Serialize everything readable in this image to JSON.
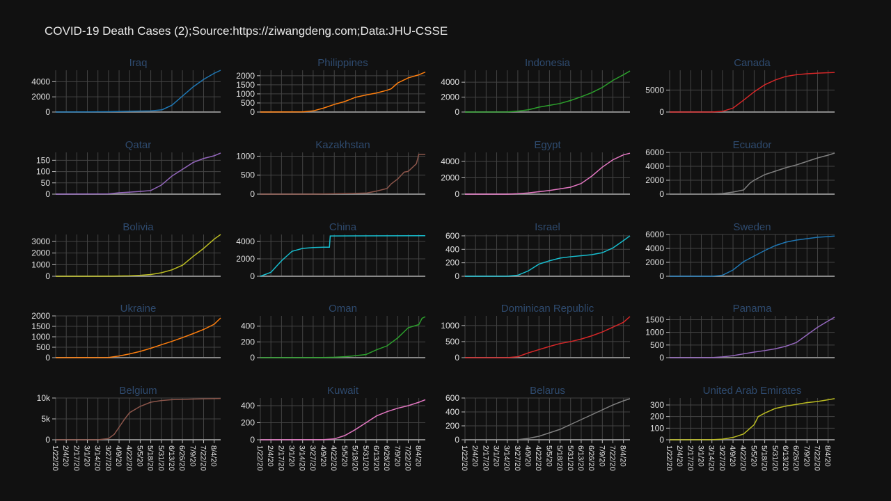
{
  "title": "COVID-19 Death Cases (2);Source:https://ziwangdeng.com;Data:JHU-CSSE",
  "colors": [
    "#1f77b4",
    "#ff7f0e",
    "#2ca02c",
    "#d62728",
    "#9467bd",
    "#8c564b",
    "#e377c2",
    "#7f7f7f",
    "#bcbd22",
    "#17becf"
  ],
  "x_tick_labels": [
    "1/22/20",
    "2/4/20",
    "2/17/20",
    "3/1/20",
    "3/14/20",
    "3/27/20",
    "4/9/20",
    "4/22/20",
    "5/5/20",
    "5/18/20",
    "5/31/20",
    "6/13/20",
    "6/26/20",
    "7/9/20",
    "7/22/20",
    "8/4/20"
  ],
  "chart_data": [
    {
      "type": "line",
      "title": "Iraq",
      "color": "#1f77b4",
      "ylim": [
        0,
        5500
      ],
      "yticks": [
        0,
        2000,
        4000
      ],
      "ytick_labels": [
        "0",
        "2000",
        "4000"
      ],
      "x": [
        "1/22/20",
        "3/27/20",
        "4/22/20",
        "5/18/20",
        "6/1/20",
        "6/13/20",
        "6/26/20",
        "7/9/20",
        "7/22/20",
        "8/4/20",
        "8/12/20"
      ],
      "values": [
        0,
        40,
        100,
        150,
        300,
        900,
        2100,
        3300,
        4300,
        5100,
        5500
      ]
    },
    {
      "type": "line",
      "title": "Philippines",
      "color": "#ff7f0e",
      "ylim": [
        0,
        2300
      ],
      "yticks": [
        0,
        500,
        1000,
        1500,
        2000
      ],
      "ytick_labels": [
        "0",
        "500",
        "1000",
        "1500",
        "2000"
      ],
      "x": [
        "1/22/20",
        "3/14/20",
        "3/27/20",
        "4/9/20",
        "4/22/20",
        "5/5/20",
        "5/18/20",
        "5/31/20",
        "6/13/20",
        "6/26/20",
        "7/1/20",
        "7/9/20",
        "7/22/20",
        "8/4/20",
        "8/12/20"
      ],
      "values": [
        0,
        10,
        60,
        220,
        420,
        580,
        810,
        940,
        1050,
        1200,
        1280,
        1600,
        1880,
        2050,
        2200
      ]
    },
    {
      "type": "line",
      "title": "Indonesia",
      "color": "#2ca02c",
      "ylim": [
        0,
        5600
      ],
      "yticks": [
        0,
        2000,
        4000
      ],
      "ytick_labels": [
        "0",
        "2000",
        "4000"
      ],
      "x": [
        "1/22/20",
        "3/14/20",
        "3/27/20",
        "4/9/20",
        "4/22/20",
        "5/5/20",
        "5/18/20",
        "5/31/20",
        "6/13/20",
        "6/26/20",
        "7/9/20",
        "7/22/20",
        "8/4/20",
        "8/12/20"
      ],
      "values": [
        0,
        10,
        120,
        300,
        650,
        900,
        1150,
        1550,
        2050,
        2600,
        3300,
        4250,
        5000,
        5500
      ]
    },
    {
      "type": "line",
      "title": "Canada",
      "color": "#d62728",
      "ylim": [
        0,
        9500
      ],
      "yticks": [
        0,
        5000
      ],
      "ytick_labels": [
        "0",
        "5000"
      ],
      "x": [
        "1/22/20",
        "3/14/20",
        "3/27/20",
        "4/9/20",
        "4/22/20",
        "5/5/20",
        "5/18/20",
        "5/31/20",
        "6/13/20",
        "6/26/20",
        "7/9/20",
        "7/22/20",
        "8/4/20",
        "8/12/20"
      ],
      "values": [
        0,
        5,
        150,
        900,
        2700,
        4600,
        6200,
        7300,
        8100,
        8500,
        8700,
        8850,
        8950,
        9000
      ]
    },
    {
      "type": "line",
      "title": "Qatar",
      "color": "#9467bd",
      "ylim": [
        0,
        185
      ],
      "yticks": [
        0,
        50,
        100,
        150
      ],
      "ytick_labels": [
        "0",
        "50",
        "100",
        "150"
      ],
      "x": [
        "1/22/20",
        "3/27/20",
        "4/9/20",
        "4/22/20",
        "5/5/20",
        "5/18/20",
        "5/31/20",
        "6/13/20",
        "6/26/20",
        "7/9/20",
        "7/22/20",
        "8/4/20",
        "8/12/20"
      ],
      "values": [
        0,
        1,
        6,
        9,
        12,
        16,
        40,
        80,
        110,
        140,
        158,
        170,
        182
      ]
    },
    {
      "type": "line",
      "title": "Kazakhstan",
      "color": "#8c564b",
      "ylim": [
        0,
        1100
      ],
      "yticks": [
        0,
        500,
        1000
      ],
      "ytick_labels": [
        "0",
        "500",
        "1000"
      ],
      "x": [
        "1/22/20",
        "3/27/20",
        "4/22/20",
        "5/18/20",
        "6/1/20",
        "6/13/20",
        "6/26/20",
        "7/1/20",
        "7/9/20",
        "7/17/20",
        "7/22/20",
        "8/1/20",
        "8/4/20",
        "8/12/20"
      ],
      "values": [
        0,
        1,
        10,
        20,
        30,
        80,
        150,
        270,
        400,
        580,
        600,
        800,
        1050,
        1050
      ]
    },
    {
      "type": "line",
      "title": "Egypt",
      "color": "#e377c2",
      "ylim": [
        0,
        5100
      ],
      "yticks": [
        0,
        2000,
        4000
      ],
      "ytick_labels": [
        "0",
        "2000",
        "4000"
      ],
      "x": [
        "1/22/20",
        "3/14/20",
        "3/27/20",
        "4/9/20",
        "4/22/20",
        "5/5/20",
        "5/18/20",
        "5/31/20",
        "6/13/20",
        "6/26/20",
        "7/9/20",
        "7/22/20",
        "8/4/20",
        "8/12/20"
      ],
      "values": [
        0,
        2,
        50,
        150,
        300,
        450,
        650,
        850,
        1300,
        2200,
        3300,
        4200,
        4800,
        5000
      ]
    },
    {
      "type": "line",
      "title": "Ecuador",
      "color": "#7f7f7f",
      "ylim": [
        0,
        6000
      ],
      "yticks": [
        0,
        2000,
        4000,
        6000
      ],
      "ytick_labels": [
        "0",
        "2000",
        "4000",
        "6000"
      ],
      "x": [
        "1/22/20",
        "3/14/20",
        "3/27/20",
        "4/9/20",
        "4/22/20",
        "4/30/20",
        "5/5/20",
        "5/18/20",
        "5/31/20",
        "6/13/20",
        "6/26/20",
        "7/9/20",
        "7/22/20",
        "8/4/20",
        "8/12/20"
      ],
      "values": [
        0,
        10,
        90,
        300,
        600,
        1600,
        2000,
        2800,
        3300,
        3800,
        4200,
        4700,
        5200,
        5600,
        5900
      ]
    },
    {
      "type": "line",
      "title": "Bolivia",
      "color": "#bcbd22",
      "ylim": [
        0,
        3600
      ],
      "yticks": [
        0,
        1000,
        2000,
        3000
      ],
      "ytick_labels": [
        "0",
        "1000",
        "2000",
        "3000"
      ],
      "x": [
        "1/22/20",
        "3/27/20",
        "4/22/20",
        "5/5/20",
        "5/18/20",
        "5/31/20",
        "6/13/20",
        "6/26/20",
        "7/9/20",
        "7/22/20",
        "8/4/20",
        "8/12/20"
      ],
      "values": [
        0,
        5,
        40,
        80,
        150,
        300,
        550,
        950,
        1700,
        2400,
        3200,
        3600
      ]
    },
    {
      "type": "line",
      "title": "China",
      "color": "#17becf",
      "ylim": [
        0,
        4800
      ],
      "yticks": [
        0,
        2000,
        4000
      ],
      "ytick_labels": [
        "0",
        "2000",
        "4000"
      ],
      "x": [
        "1/22/20",
        "2/4/20",
        "2/17/20",
        "3/1/20",
        "3/14/20",
        "3/27/20",
        "4/9/20",
        "4/16/20",
        "4/17/20",
        "8/12/20"
      ],
      "values": [
        0,
        450,
        1770,
        2870,
        3200,
        3300,
        3340,
        3340,
        4630,
        4660
      ]
    },
    {
      "type": "line",
      "title": "Israel",
      "color": "#17becf",
      "ylim": [
        0,
        620
      ],
      "yticks": [
        0,
        200,
        400,
        600
      ],
      "ytick_labels": [
        "0",
        "200",
        "400",
        "600"
      ],
      "x": [
        "1/22/20",
        "3/14/20",
        "3/27/20",
        "4/9/20",
        "4/22/20",
        "5/5/20",
        "5/18/20",
        "5/31/20",
        "6/13/20",
        "6/26/20",
        "7/9/20",
        "7/22/20",
        "8/4/20",
        "8/12/20"
      ],
      "values": [
        0,
        1,
        15,
        80,
        180,
        230,
        270,
        290,
        305,
        320,
        350,
        420,
        530,
        600
      ]
    },
    {
      "type": "line",
      "title": "Sweden",
      "color": "#1f77b4",
      "ylim": [
        0,
        6000
      ],
      "yticks": [
        0,
        2000,
        4000,
        6000
      ],
      "ytick_labels": [
        "0",
        "2000",
        "4000",
        "6000"
      ],
      "x": [
        "1/22/20",
        "3/14/20",
        "3/27/20",
        "4/9/20",
        "4/22/20",
        "5/5/20",
        "5/18/20",
        "5/31/20",
        "6/13/20",
        "6/26/20",
        "7/9/20",
        "7/22/20",
        "8/4/20",
        "8/12/20"
      ],
      "values": [
        0,
        5,
        150,
        900,
        2100,
        2900,
        3700,
        4400,
        4900,
        5200,
        5400,
        5600,
        5700,
        5770
      ]
    },
    {
      "type": "line",
      "title": "Ukraine",
      "color": "#ff7f0e",
      "ylim": [
        0,
        2000
      ],
      "yticks": [
        0,
        500,
        1000,
        1500,
        2000
      ],
      "ytick_labels": [
        "0",
        "500",
        "1000",
        "1500",
        "2000"
      ],
      "x": [
        "1/22/20",
        "3/27/20",
        "4/9/20",
        "4/22/20",
        "5/5/20",
        "5/18/20",
        "5/31/20",
        "6/13/20",
        "6/26/20",
        "7/9/20",
        "7/22/20",
        "8/4/20",
        "8/12/20"
      ],
      "values": [
        0,
        10,
        80,
        180,
        300,
        450,
        620,
        780,
        960,
        1150,
        1350,
        1600,
        1900
      ]
    },
    {
      "type": "line",
      "title": "Oman",
      "color": "#2ca02c",
      "ylim": [
        0,
        530
      ],
      "yticks": [
        0,
        200,
        400
      ],
      "ytick_labels": [
        "0",
        "200",
        "400"
      ],
      "x": [
        "1/22/20",
        "4/9/20",
        "4/22/20",
        "5/5/20",
        "5/18/20",
        "5/31/20",
        "6/13/20",
        "6/26/20",
        "7/9/20",
        "7/22/20",
        "8/4/20",
        "8/8/20",
        "8/12/20"
      ],
      "values": [
        0,
        2,
        5,
        12,
        25,
        40,
        100,
        150,
        250,
        380,
        420,
        500,
        520
      ]
    },
    {
      "type": "line",
      "title": "Dominican Republic",
      "color": "#d62728",
      "ylim": [
        0,
        1300
      ],
      "yticks": [
        0,
        500,
        1000
      ],
      "ytick_labels": [
        "0",
        "500",
        "1000"
      ],
      "x": [
        "1/22/20",
        "3/14/20",
        "3/27/20",
        "4/9/20",
        "4/22/20",
        "5/5/20",
        "5/18/20",
        "5/31/20",
        "6/13/20",
        "6/26/20",
        "7/9/20",
        "7/22/20",
        "8/4/20",
        "8/12/20"
      ],
      "values": [
        0,
        1,
        30,
        150,
        250,
        350,
        440,
        500,
        580,
        680,
        800,
        950,
        1100,
        1280
      ]
    },
    {
      "type": "line",
      "title": "Panama",
      "color": "#9467bd",
      "ylim": [
        0,
        1650
      ],
      "yticks": [
        0,
        500,
        1000,
        1500
      ],
      "ytick_labels": [
        "0",
        "500",
        "1000",
        "1500"
      ],
      "x": [
        "1/22/20",
        "3/14/20",
        "3/27/20",
        "4/9/20",
        "4/22/20",
        "5/5/20",
        "5/18/20",
        "5/31/20",
        "6/13/20",
        "6/26/20",
        "7/9/20",
        "7/22/20",
        "8/4/20",
        "8/12/20"
      ],
      "values": [
        0,
        5,
        30,
        80,
        150,
        220,
        280,
        350,
        450,
        600,
        900,
        1200,
        1450,
        1600
      ]
    },
    {
      "type": "line",
      "title": "Belgium",
      "color": "#8c564b",
      "ylim": [
        0,
        10000
      ],
      "yticks": [
        0,
        5000,
        10000
      ],
      "ytick_labels": [
        "0",
        "5k",
        "10k"
      ],
      "x": [
        "1/22/20",
        "3/14/20",
        "3/27/20",
        "4/3/20",
        "4/9/20",
        "4/16/20",
        "4/22/20",
        "5/5/20",
        "5/18/20",
        "5/31/20",
        "6/13/20",
        "7/9/20",
        "8/4/20",
        "8/12/20"
      ],
      "values": [
        0,
        5,
        300,
        1300,
        3000,
        5000,
        6500,
        8000,
        9000,
        9400,
        9600,
        9750,
        9850,
        9900
      ]
    },
    {
      "type": "line",
      "title": "Kuwait",
      "color": "#e377c2",
      "ylim": [
        0,
        490
      ],
      "yticks": [
        0,
        200,
        400
      ],
      "ytick_labels": [
        "0",
        "200",
        "400"
      ],
      "x": [
        "1/22/20",
        "4/9/20",
        "4/22/20",
        "5/5/20",
        "5/18/20",
        "5/31/20",
        "6/13/20",
        "6/26/20",
        "7/9/20",
        "7/22/20",
        "8/4/20",
        "8/12/20"
      ],
      "values": [
        0,
        2,
        10,
        50,
        120,
        200,
        280,
        330,
        370,
        400,
        440,
        470
      ]
    },
    {
      "type": "line",
      "title": "Belarus",
      "color": "#7f7f7f",
      "ylim": [
        0,
        600
      ],
      "yticks": [
        0,
        200,
        400,
        600
      ],
      "ytick_labels": [
        "0",
        "200",
        "400",
        "600"
      ],
      "x": [
        "1/22/20",
        "3/27/20",
        "4/9/20",
        "4/22/20",
        "5/5/20",
        "5/18/20",
        "5/31/20",
        "6/13/20",
        "6/26/20",
        "7/9/20",
        "7/22/20",
        "8/4/20",
        "8/12/20"
      ],
      "values": [
        0,
        1,
        20,
        50,
        100,
        150,
        220,
        290,
        360,
        430,
        500,
        560,
        590
      ]
    },
    {
      "type": "line",
      "title": "United Arab Emirates",
      "color": "#bcbd22",
      "ylim": [
        0,
        360
      ],
      "yticks": [
        0,
        100,
        200,
        300
      ],
      "ytick_labels": [
        "0",
        "100",
        "200",
        "300"
      ],
      "x": [
        "1/22/20",
        "3/14/20",
        "3/27/20",
        "4/9/20",
        "4/22/20",
        "5/5/20",
        "5/10/20",
        "5/18/20",
        "5/31/20",
        "6/13/20",
        "6/26/20",
        "7/9/20",
        "7/22/20",
        "8/4/20",
        "8/12/20"
      ],
      "values": [
        0,
        1,
        5,
        20,
        50,
        130,
        200,
        230,
        270,
        290,
        305,
        320,
        330,
        345,
        355
      ]
    }
  ]
}
